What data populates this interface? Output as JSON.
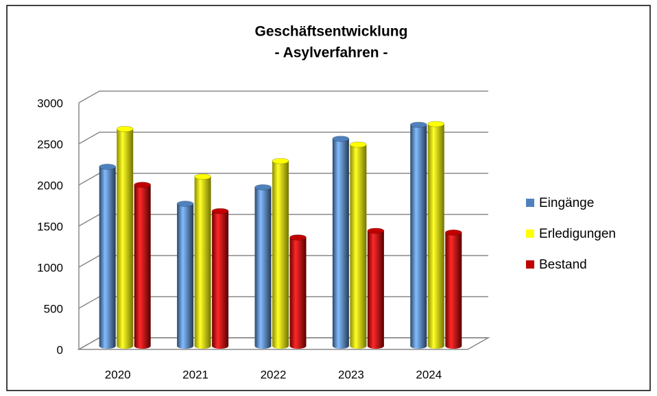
{
  "chart_data": {
    "type": "bar3d",
    "title": [
      "Geschäftsentwicklung",
      "- Asylverfahren -"
    ],
    "categories": [
      "2020",
      "2021",
      "2022",
      "2023",
      "2024"
    ],
    "series": [
      {
        "name": "Eingänge",
        "color": "#4f81bd",
        "values": [
          2180,
          1730,
          1930,
          2520,
          2690
        ]
      },
      {
        "name": "Erledigungen",
        "color": "#ffff00",
        "values": [
          2640,
          2060,
          2250,
          2450,
          2700
        ]
      },
      {
        "name": "Bestand",
        "color": "#c00000",
        "values": [
          1960,
          1640,
          1320,
          1400,
          1380
        ]
      }
    ],
    "ylim": [
      0,
      3000
    ],
    "yticks": [
      0,
      500,
      1000,
      1500,
      2000,
      2500,
      3000
    ],
    "grid": true,
    "legend": "right"
  }
}
